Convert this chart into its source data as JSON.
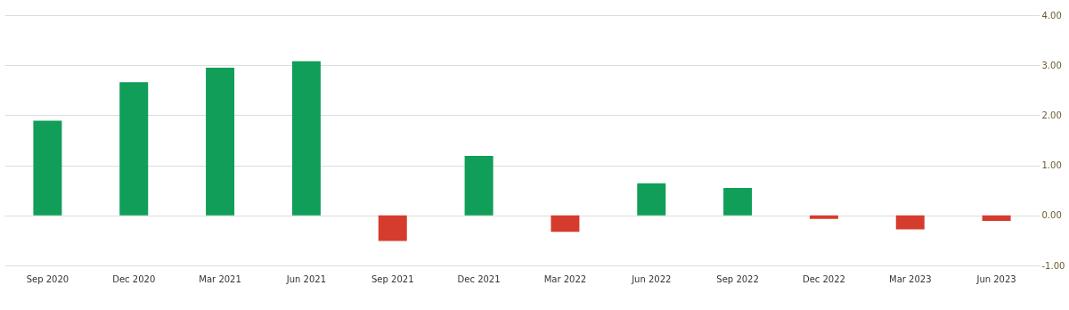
{
  "chart_data": {
    "type": "bar",
    "categories": [
      "Sep 2020",
      "Dec 2020",
      "Mar 2021",
      "Jun 2021",
      "Sep 2021",
      "Dec 2021",
      "Mar 2022",
      "Jun 2022",
      "Sep 2022",
      "Dec 2022",
      "Mar 2023",
      "Jun 2023"
    ],
    "values": [
      1.89,
      2.66,
      2.95,
      3.08,
      -0.51,
      1.19,
      -0.33,
      0.64,
      0.55,
      -0.07,
      -0.28,
      -0.11
    ],
    "colors": [
      "#109e58",
      "#109e58",
      "#109e58",
      "#109e58",
      "#d63c2e",
      "#109e58",
      "#d63c2e",
      "#109e58",
      "#109e58",
      "#d63c2e",
      "#d63c2e",
      "#d63c2e"
    ],
    "ylim": [
      -1,
      4
    ],
    "yticks": [
      {
        "value": -1,
        "label": "-1.00"
      },
      {
        "value": 0,
        "label": "0.00"
      },
      {
        "value": 1,
        "label": "1.00"
      },
      {
        "value": 2,
        "label": "2.00"
      },
      {
        "value": 3,
        "label": "3.00"
      },
      {
        "value": 4,
        "label": "4.00"
      }
    ],
    "grid": "y"
  }
}
